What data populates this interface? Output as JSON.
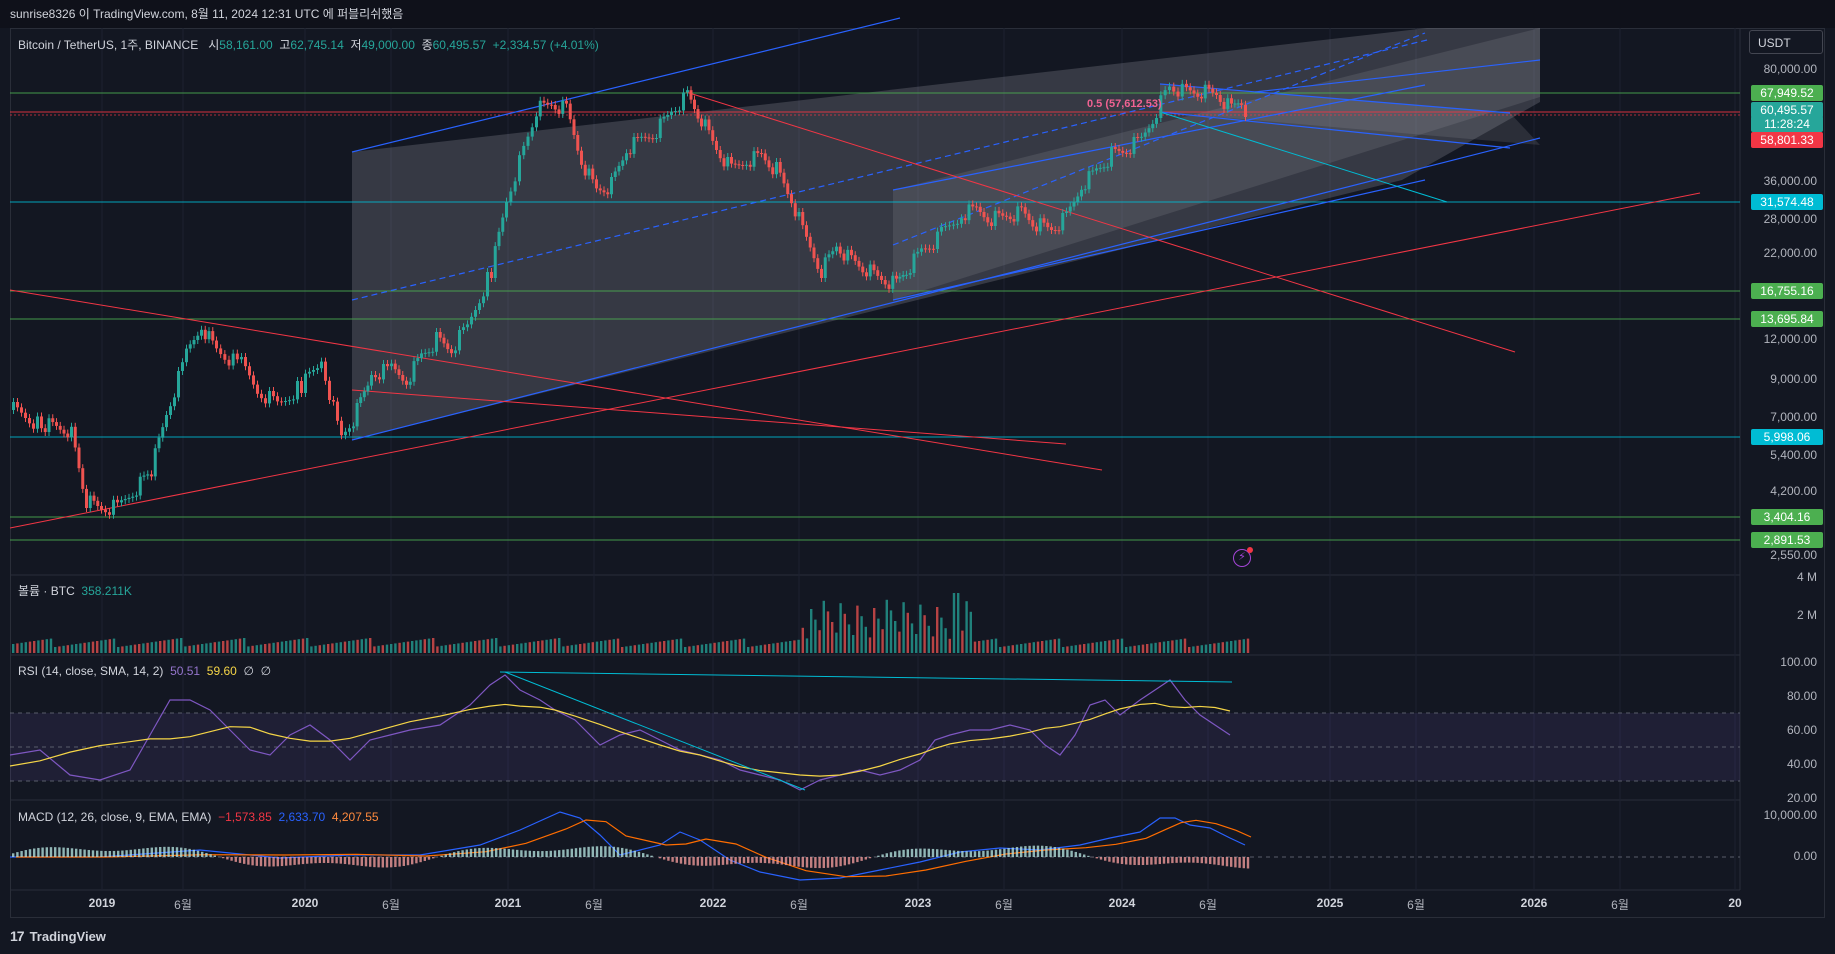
{
  "header": {
    "published_text": "sunrise8326 이 TradingView.com, 8월 11, 2024 12:31 UTC 에 퍼블리쉬했음"
  },
  "legend": {
    "symbol": "Bitcoin / TetherUS, 1주, BINANCE",
    "open_label": "시",
    "open": "58,161.00",
    "high_label": "고",
    "high": "62,745.14",
    "low_label": "저",
    "low": "49,000.00",
    "close_label": "종",
    "close": "60,495.57",
    "change": "+2,334.57 (+4.01%)"
  },
  "volume": {
    "label": "볼륨 · BTC",
    "value": "358.211K"
  },
  "rsi": {
    "label": "RSI (14, close, SMA, 14, 2)",
    "value": "50.51",
    "sma": "59.60",
    "extra1": "∅",
    "extra2": "∅"
  },
  "macd": {
    "label": "MACD (12, 26, close, 9, EMA, EMA)",
    "hist": "−1,573.85",
    "macd": "2,633.70",
    "signal": "4,207.55"
  },
  "currency_button": "USDT",
  "fib_label": "0.5 (57,612.53)",
  "price_axis": {
    "ticks": [
      "80,000.00",
      "36,000.00",
      "28,000.00",
      "22,000.00",
      "12,000.00",
      "9,000.00",
      "7,000.00",
      "5,400.00",
      "4,200.00",
      "2,550.00"
    ],
    "tags": [
      {
        "value": "67,949.52",
        "color": "#4caf50"
      },
      {
        "value": "60,495.57",
        "color": "#26a69a"
      },
      {
        "value": "11:28:24",
        "color": "#26a69a"
      },
      {
        "value": "58,801.33",
        "color": "#f23645"
      },
      {
        "value": "31,574.48",
        "color": "#00bcd4"
      },
      {
        "value": "16,755.16",
        "color": "#4caf50"
      },
      {
        "value": "13,695.84",
        "color": "#4caf50"
      },
      {
        "value": "5,998.06",
        "color": "#00bcd4"
      },
      {
        "value": "3,404.16",
        "color": "#4caf50"
      },
      {
        "value": "2,891.53",
        "color": "#4caf50"
      }
    ]
  },
  "volume_axis": [
    "4 M",
    "2 M"
  ],
  "rsi_axis": [
    "100.00",
    "80.00",
    "60.00",
    "40.00",
    "20.00"
  ],
  "macd_axis": [
    "10,000.00",
    "0.00"
  ],
  "time_axis": [
    {
      "label": "2019",
      "year": true
    },
    {
      "label": "6월",
      "year": false
    },
    {
      "label": "2020",
      "year": true
    },
    {
      "label": "6월",
      "year": false
    },
    {
      "label": "2021",
      "year": true
    },
    {
      "label": "6월",
      "year": false
    },
    {
      "label": "2022",
      "year": true
    },
    {
      "label": "6월",
      "year": false
    },
    {
      "label": "2023",
      "year": true
    },
    {
      "label": "6월",
      "year": false
    },
    {
      "label": "2024",
      "year": true
    },
    {
      "label": "6월",
      "year": false
    },
    {
      "label": "2025",
      "year": true
    },
    {
      "label": "6월",
      "year": false
    },
    {
      "label": "2026",
      "year": true
    },
    {
      "label": "6월",
      "year": false
    },
    {
      "label": "20",
      "year": true
    }
  ],
  "footer": {
    "logo_mark": "17",
    "brand": "TradingView"
  },
  "colors": {
    "up": "#26a69a",
    "down": "#ef5350",
    "channel": "#2962ff",
    "trend_red": "#f23645",
    "cyan": "#00bcd4",
    "green_level": "#4caf50",
    "rsi": "#7e57c2",
    "rsi_sma": "#f5d547",
    "macd": "#2962ff",
    "signal": "#ff6d00"
  }
}
